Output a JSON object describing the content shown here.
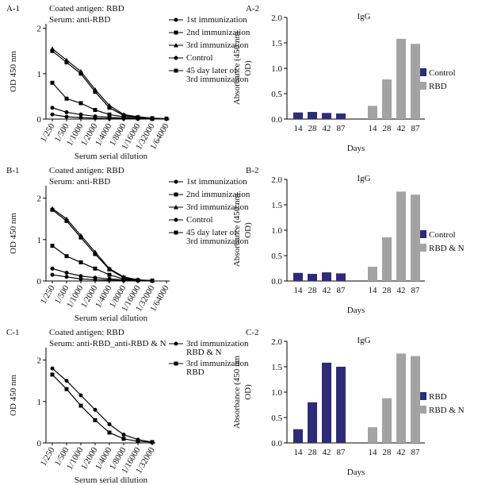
{
  "chart_data": [
    {
      "type": "line",
      "title": "A-1",
      "annotations": [
        "Coated antigen: RBD",
        "Serum: anti-RBD"
      ],
      "x_label": "Serum serial dilution",
      "y_label": "OD 450 nm",
      "categories": [
        "1/250",
        "1/500",
        "1/1000",
        "1/2000",
        "1/4000",
        "1/8000",
        "1/16000",
        "1/32000",
        "1/64000"
      ],
      "ylim": [
        0,
        2.1
      ],
      "yticks": [
        0,
        1,
        2
      ],
      "legend": "right",
      "series": [
        {
          "name": "1st immunization",
          "color": "#000000",
          "values": [
            0.25,
            0.15,
            0.1,
            0.06,
            0.04,
            0.02,
            0.01,
            0.01,
            null
          ]
        },
        {
          "name": "2nd immunization",
          "color": "#000000",
          "values": [
            0.8,
            0.45,
            0.35,
            0.2,
            0.1,
            0.05,
            0.02,
            0.01,
            null
          ]
        },
        {
          "name": "3rd immunization",
          "color": "#000000",
          "values": [
            1.55,
            1.3,
            1.05,
            0.65,
            0.3,
            0.1,
            0.05,
            0.02,
            null
          ]
        },
        {
          "name": "Control",
          "color": "#000000",
          "values": [
            0.1,
            0.05,
            0.03,
            0.02,
            0.01,
            0.01,
            0.01,
            0.01,
            null
          ]
        },
        {
          "name": "45 day later of 3rd immunization",
          "color": "#000000",
          "values": [
            1.5,
            1.25,
            1.0,
            0.6,
            0.25,
            0.08,
            0.04,
            0.02,
            0.01
          ]
        }
      ]
    },
    {
      "type": "bar",
      "title": "A-2",
      "subtitle": "IgG",
      "x_label": "Days",
      "y_label": [
        "Absorbance (450 nm",
        "OD)"
      ],
      "categories": [
        "14",
        "28",
        "42",
        "87",
        "14",
        "28",
        "42",
        "87"
      ],
      "ylim": [
        0,
        2
      ],
      "yticks": [
        {
          "value": 0,
          "label": "0.0"
        },
        {
          "value": 0.5,
          "label": "0.5"
        },
        {
          "value": 1,
          "label": "1.0"
        },
        {
          "value": 1.5,
          "label": "1.5"
        },
        {
          "value": 2,
          "label": "2.0"
        }
      ],
      "legend": "right",
      "series": [
        {
          "name": "Control",
          "color": "#2e2c78",
          "values": [
            0.13,
            0.14,
            0.12,
            0.11,
            null,
            null,
            null,
            null
          ]
        },
        {
          "name": "RBD",
          "color": "#a3a3a3",
          "values": [
            null,
            null,
            null,
            null,
            0.26,
            0.78,
            1.58,
            1.48
          ]
        }
      ]
    },
    {
      "type": "line",
      "title": "B-1",
      "annotations": [
        "Coated antigen: RBD",
        "Serum: anti-RBD"
      ],
      "x_label": "Serum serial dilution",
      "y_label": "OD 450 nm",
      "categories": [
        "1/250",
        "1/500",
        "1/1000",
        "1/2000",
        "1/4000",
        "1/8000",
        "1/16000",
        "1/32000",
        "1/64000"
      ],
      "ylim": [
        0,
        2.3
      ],
      "yticks": [
        0,
        1,
        2
      ],
      "legend": "right",
      "series": [
        {
          "name": "1st immunization",
          "color": "#000000",
          "values": [
            0.3,
            0.2,
            0.12,
            0.08,
            0.05,
            0.03,
            0.02,
            0.01,
            null
          ]
        },
        {
          "name": "2nd immunization",
          "color": "#000000",
          "values": [
            0.85,
            0.6,
            0.45,
            0.3,
            0.15,
            0.05,
            0.02,
            0.01,
            null
          ]
        },
        {
          "name": "3rd immunization",
          "color": "#000000",
          "values": [
            1.75,
            1.5,
            1.1,
            0.7,
            0.3,
            0.1,
            0.03,
            0.01,
            null
          ]
        },
        {
          "name": "Control",
          "color": "#000000",
          "values": [
            0.15,
            0.1,
            0.05,
            0.03,
            0.02,
            0.01,
            0.01,
            0.01,
            null
          ]
        },
        {
          "name": "45 day later of 3rd immunization",
          "color": "#000000",
          "values": [
            1.72,
            1.45,
            1.05,
            0.65,
            0.28,
            0.08,
            0.02,
            0.01,
            null
          ]
        }
      ]
    },
    {
      "type": "bar",
      "title": "B-2",
      "subtitle": "IgG",
      "x_label": "Days",
      "y_label": [
        "Absorbance (450 nm",
        "OD)"
      ],
      "categories": [
        "14",
        "28",
        "42",
        "87",
        "14",
        "28",
        "42",
        "87"
      ],
      "ylim": [
        0,
        2
      ],
      "yticks": [
        {
          "value": 0,
          "label": "0.0"
        },
        {
          "value": 0.5,
          "label": "0.5"
        },
        {
          "value": 1,
          "label": "1.0"
        },
        {
          "value": 1.5,
          "label": "1.5"
        },
        {
          "value": 2,
          "label": "2.0"
        }
      ],
      "legend": "right",
      "series": [
        {
          "name": "Control",
          "color": "#2e2c78",
          "values": [
            0.16,
            0.14,
            0.17,
            0.15,
            null,
            null,
            null,
            null
          ]
        },
        {
          "name": "RBD & N",
          "color": "#a3a3a3",
          "values": [
            null,
            null,
            null,
            null,
            0.28,
            0.86,
            1.76,
            1.7
          ]
        }
      ]
    },
    {
      "type": "line",
      "title": "C-1",
      "annotations": [
        "Coated antigen: RBD",
        "Serum: anti-RBD_anti-RBD & N"
      ],
      "x_label": "Serum serial dilution",
      "y_label": "OD 450 nm",
      "categories": [
        "1/250",
        "1/500",
        "1/1000",
        "1/2000",
        "1/4000",
        "1/8000",
        "1/16000",
        "1/32000"
      ],
      "ylim": [
        0,
        2.3
      ],
      "yticks": [
        0,
        1,
        2
      ],
      "legend": "right",
      "series": [
        {
          "name": "3rd immunization RBD & N",
          "color": "#000000",
          "values": [
            1.8,
            1.5,
            1.15,
            0.8,
            0.45,
            0.2,
            0.08,
            0.02
          ]
        },
        {
          "name": "3rd immunization RBD",
          "color": "#000000",
          "values": [
            1.65,
            1.3,
            0.9,
            0.55,
            0.25,
            0.1,
            0.04,
            0.02
          ]
        }
      ]
    },
    {
      "type": "bar",
      "title": "C-2",
      "subtitle": "IgG",
      "x_label": "Days",
      "y_label": [
        "Absorbance (450 nm",
        "OD)"
      ],
      "categories": [
        "14",
        "28",
        "42",
        "87",
        "14",
        "28",
        "42",
        "87"
      ],
      "ylim": [
        0,
        2
      ],
      "yticks": [
        {
          "value": 0,
          "label": "0.0"
        },
        {
          "value": 0.5,
          "label": "0.5"
        },
        {
          "value": 1,
          "label": "1.0"
        },
        {
          "value": 1.5,
          "label": "1.5"
        },
        {
          "value": 2,
          "label": "2.0"
        }
      ],
      "legend": "right",
      "series": [
        {
          "name": "RBD",
          "color": "#2e2c78",
          "values": [
            0.27,
            0.8,
            1.58,
            1.5,
            null,
            null,
            null,
            null
          ]
        },
        {
          "name": "RBD & N",
          "color": "#a3a3a3",
          "values": [
            null,
            null,
            null,
            null,
            0.31,
            0.88,
            1.76,
            1.71
          ]
        }
      ]
    }
  ]
}
